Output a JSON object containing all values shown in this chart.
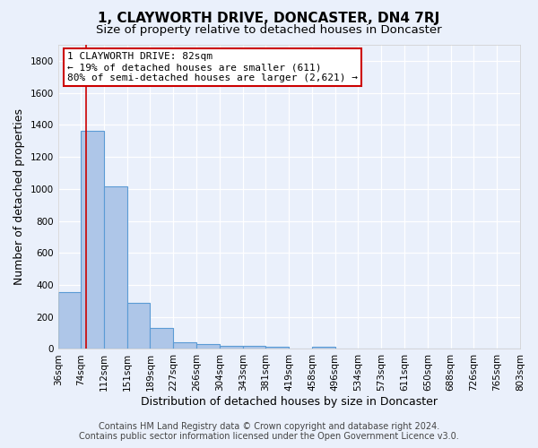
{
  "title": "1, CLAYWORTH DRIVE, DONCASTER, DN4 7RJ",
  "subtitle": "Size of property relative to detached houses in Doncaster",
  "xlabel": "Distribution of detached houses by size in Doncaster",
  "ylabel": "Number of detached properties",
  "bar_values": [
    355,
    1360,
    1015,
    290,
    130,
    40,
    30,
    20,
    18,
    15,
    0,
    15,
    0,
    0,
    0,
    0,
    0,
    0,
    0,
    0
  ],
  "bin_edges": [
    36,
    74,
    112,
    151,
    189,
    227,
    266,
    304,
    343,
    381,
    419,
    458,
    496,
    534,
    573,
    611,
    650,
    688,
    726,
    765,
    803
  ],
  "tick_labels": [
    "36sqm",
    "74sqm",
    "112sqm",
    "151sqm",
    "189sqm",
    "227sqm",
    "266sqm",
    "304sqm",
    "343sqm",
    "381sqm",
    "419sqm",
    "458sqm",
    "496sqm",
    "534sqm",
    "573sqm",
    "611sqm",
    "650sqm",
    "688sqm",
    "726sqm",
    "765sqm",
    "803sqm"
  ],
  "bar_color": "#aec6e8",
  "bar_edge_color": "#5b9bd5",
  "red_line_x": 82,
  "ylim": [
    0,
    1900
  ],
  "yticks": [
    0,
    200,
    400,
    600,
    800,
    1000,
    1200,
    1400,
    1600,
    1800
  ],
  "annotation_line1": "1 CLAYWORTH DRIVE: 82sqm",
  "annotation_line2": "← 19% of detached houses are smaller (611)",
  "annotation_line3": "80% of semi-detached houses are larger (2,621) →",
  "footer_line1": "Contains HM Land Registry data © Crown copyright and database right 2024.",
  "footer_line2": "Contains public sector information licensed under the Open Government Licence v3.0.",
  "bg_color": "#eaf0fb",
  "grid_color": "#d0d8e8",
  "title_fontsize": 11,
  "subtitle_fontsize": 9.5,
  "axis_label_fontsize": 9,
  "tick_fontsize": 7.5,
  "footer_fontsize": 7
}
